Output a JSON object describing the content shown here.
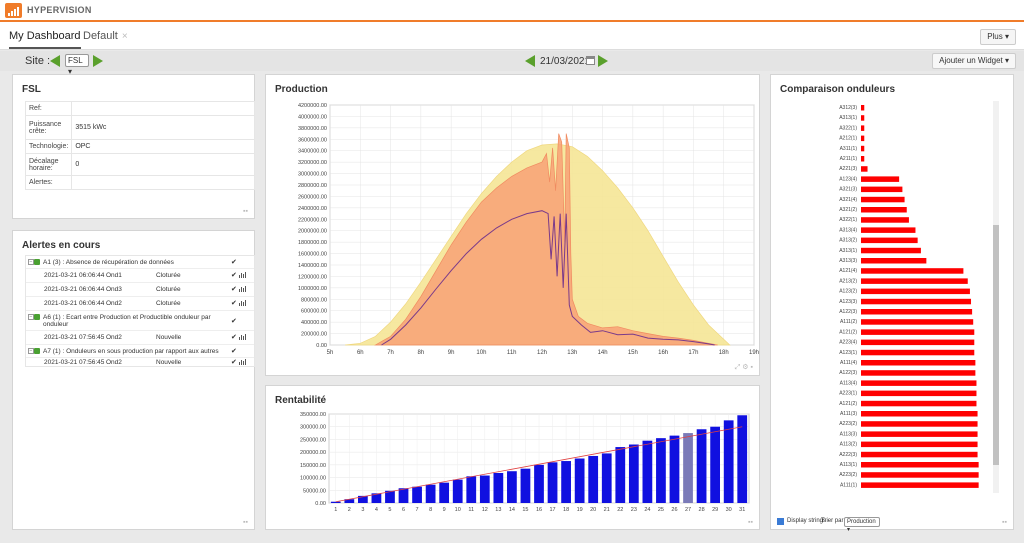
{
  "app": {
    "brand": "HYPERVISION"
  },
  "tabs": [
    {
      "label": "My Dashboard"
    },
    {
      "label": "Default",
      "close": "×"
    }
  ],
  "plus_label": "Plus ▾",
  "toolbar": {
    "site_label": "Site :",
    "site_value": "FSL ▾",
    "date": "21/03/2021",
    "add_widget": "Ajouter un Widget ▾"
  },
  "fsl": {
    "title": "FSL",
    "rows": [
      {
        "key": "Ref:",
        "value": ""
      },
      {
        "key": "Puissance crête:",
        "value": "3515 kWc"
      },
      {
        "key": "Technologie:",
        "value": "OPC"
      },
      {
        "key": "Décalage horaire:",
        "value": "0"
      },
      {
        "key": "Alertes:",
        "value": ""
      }
    ]
  },
  "alerts": {
    "title": "Alertes en cours",
    "groups": [
      {
        "header": "A1 (3) : Absence de récupération de données",
        "rows": [
          {
            "date": "2021-03-21 06:06:44",
            "ond": "Ond1",
            "status": "Cloturée"
          },
          {
            "date": "2021-03-21 06:06:44",
            "ond": "Ond3",
            "status": "Cloturée"
          },
          {
            "date": "2021-03-21 06:06:44",
            "ond": "Ond2",
            "status": "Cloturée"
          }
        ]
      },
      {
        "header": "A6 (1) : Ecart entre Production et Productible onduleur par onduleur",
        "rows": [
          {
            "date": "2021-03-21 07:56:45",
            "ond": "Ond2",
            "status": "Nouvelle"
          }
        ]
      },
      {
        "header": "A7 (1) : Onduleurs en sous production par rapport aux autres",
        "rows": [
          {
            "date": "2021-03-21 07:56:45",
            "ond": "Ond2",
            "status": "Nouvelle"
          }
        ]
      }
    ]
  },
  "production": {
    "title": "Production"
  },
  "rentabilite": {
    "title": "Rentabilité"
  },
  "comparaison": {
    "title": "Comparaison onduleurs",
    "display_strings": "Display strings",
    "trier_par": "Trier par :",
    "trier_value": "Production ▾"
  },
  "colors": {
    "accent": "#f07c2a",
    "green": "#5aa02c",
    "bar_red": "#ff0000",
    "bar_blue": "#1010e0"
  },
  "chart_data": [
    {
      "type": "area",
      "title": "",
      "x": [
        "5h",
        "6h",
        "7h",
        "8h",
        "9h",
        "10h",
        "11h",
        "12h",
        "13h",
        "14h",
        "15h",
        "16h",
        "17h",
        "18h",
        "19h"
      ],
      "ylim": [
        0,
        4200000
      ],
      "yticks": [
        "0.00",
        "200000.00",
        "400000.00",
        "600000.00",
        "800000.00",
        "1000000.00",
        "1200000.00",
        "1400000.00",
        "1600000.00",
        "1800000.00",
        "2000000.00",
        "2200000.00",
        "2400000.00",
        "2600000.00",
        "2800000.00",
        "3000000.00",
        "3200000.00",
        "3400000.00",
        "3600000.00",
        "3800000.00",
        "4000000.00",
        "4200000.00"
      ],
      "series": [
        {
          "kind": "area",
          "color": "#f5e596",
          "points": [
            [
              5.5,
              0
            ],
            [
              6,
              30000
            ],
            [
              6.5,
              150000
            ],
            [
              7,
              400000
            ],
            [
              7.5,
              720000
            ],
            [
              8,
              1100000
            ],
            [
              8.5,
              1500000
            ],
            [
              9,
              1900000
            ],
            [
              9.5,
              2300000
            ],
            [
              10,
              2650000
            ],
            [
              10.5,
              2950000
            ],
            [
              11,
              3200000
            ],
            [
              11.5,
              3400000
            ],
            [
              12,
              3500000
            ],
            [
              12.5,
              3520000
            ],
            [
              13,
              3470000
            ],
            [
              13.5,
              3300000
            ],
            [
              14,
              3050000
            ],
            [
              14.5,
              2750000
            ],
            [
              15,
              2400000
            ],
            [
              15.5,
              2000000
            ],
            [
              16,
              1550000
            ],
            [
              16.5,
              1100000
            ],
            [
              17,
              700000
            ],
            [
              17.5,
              350000
            ],
            [
              18,
              100000
            ],
            [
              18.2,
              0
            ]
          ]
        },
        {
          "kind": "area",
          "color": "#f8a176",
          "points": [
            [
              6.5,
              0
            ],
            [
              7,
              150000
            ],
            [
              7.5,
              450000
            ],
            [
              8,
              850000
            ],
            [
              8.5,
              1300000
            ],
            [
              9,
              1750000
            ],
            [
              9.5,
              2150000
            ],
            [
              10,
              2500000
            ],
            [
              10.5,
              2750000
            ],
            [
              11,
              2950000
            ],
            [
              11.5,
              3100000
            ],
            [
              12,
              3200000
            ],
            [
              12.15,
              3350000
            ],
            [
              12.25,
              2850000
            ],
            [
              12.35,
              3450000
            ],
            [
              12.45,
              2700000
            ],
            [
              12.55,
              3700000
            ],
            [
              12.65,
              3550000
            ],
            [
              12.75,
              1800000
            ],
            [
              12.8,
              3700000
            ],
            [
              12.9,
              3450000
            ],
            [
              12.95,
              1600000
            ],
            [
              13,
              800000
            ],
            [
              13.2,
              500000
            ],
            [
              13.5,
              380000
            ],
            [
              14,
              300000
            ],
            [
              14.5,
              320000
            ],
            [
              15,
              250000
            ],
            [
              15.5,
              200000
            ],
            [
              16,
              150000
            ],
            [
              16.5,
              120000
            ],
            [
              17,
              80000
            ],
            [
              17.5,
              30000
            ],
            [
              17.8,
              0
            ]
          ]
        },
        {
          "kind": "line",
          "color": "#7a3a8a",
          "points": [
            [
              6.7,
              0
            ],
            [
              7,
              100000
            ],
            [
              7.5,
              350000
            ],
            [
              8,
              650000
            ],
            [
              8.5,
              980000
            ],
            [
              9,
              1300000
            ],
            [
              9.5,
              1600000
            ],
            [
              10,
              1850000
            ],
            [
              10.5,
              2050000
            ],
            [
              11,
              2200000
            ],
            [
              11.5,
              2300000
            ],
            [
              12,
              2350000
            ],
            [
              12.2,
              2300000
            ],
            [
              12.3,
              1500000
            ],
            [
              12.4,
              2250000
            ],
            [
              12.5,
              1200000
            ],
            [
              12.6,
              2300000
            ],
            [
              12.7,
              1000000
            ],
            [
              12.8,
              2300000
            ],
            [
              12.9,
              700000
            ],
            [
              13,
              500000
            ],
            [
              13.3,
              350000
            ],
            [
              13.6,
              220000
            ],
            [
              14,
              250000
            ],
            [
              14.5,
              180000
            ],
            [
              15,
              190000
            ],
            [
              15.5,
              120000
            ],
            [
              16,
              100000
            ],
            [
              16.5,
              90000
            ],
            [
              17,
              60000
            ],
            [
              17.5,
              20000
            ],
            [
              17.7,
              0
            ]
          ]
        }
      ]
    },
    {
      "type": "bar",
      "title": "",
      "categories": [
        "1",
        "2",
        "3",
        "4",
        "5",
        "6",
        "7",
        "8",
        "9",
        "10",
        "11",
        "12",
        "13",
        "14",
        "15",
        "16",
        "17",
        "18",
        "19",
        "20",
        "21",
        "22",
        "23",
        "24",
        "25",
        "26",
        "27",
        "28",
        "29",
        "30",
        "31"
      ],
      "values": [
        5000,
        15000,
        28000,
        38000,
        48000,
        58000,
        64000,
        72000,
        80000,
        92000,
        105000,
        108000,
        118000,
        125000,
        135000,
        150000,
        160000,
        165000,
        175000,
        185000,
        195000,
        220000,
        230000,
        245000,
        255000,
        265000,
        275000,
        290000,
        300000,
        325000,
        345000
      ],
      "ylim": [
        0,
        350000
      ],
      "yticks": [
        "0.00",
        "50000.00",
        "100000.00",
        "150000.00",
        "200000.00",
        "250000.00",
        "300000.00",
        "350000.00"
      ],
      "trend": [
        [
          1,
          5000
        ],
        [
          31,
          300000
        ]
      ]
    },
    {
      "type": "bar",
      "orientation": "horizontal",
      "title": "",
      "categories": [
        "A312(3)",
        "A313(1)",
        "A322(1)",
        "A212(1)",
        "A311(1)",
        "A211(1)",
        "A221(3)",
        "A123(4)",
        "A321(3)",
        "A321(4)",
        "A321(2)",
        "A322(1)",
        "A313(4)",
        "A313(2)",
        "A313(1)",
        "A313(3)",
        "A121(4)",
        "A213(2)",
        "A123(2)",
        "A123(3)",
        "A122(3)",
        "A111(2)",
        "A121(2)",
        "A223(4)",
        "A123(1)",
        "A111(4)",
        "A122(3)",
        "A113(4)",
        "A223(1)",
        "A121(2)",
        "A111(3)",
        "A223(2)",
        "A113(3)",
        "A113(2)",
        "A222(3)",
        "A113(1)",
        "A223(2)",
        "A111(1)"
      ],
      "values": [
        3,
        3,
        3,
        3,
        3,
        3,
        6,
        35,
        38,
        40,
        42,
        44,
        50,
        52,
        55,
        60,
        94,
        98,
        100,
        101,
        102,
        103,
        104,
        104,
        104,
        105,
        105,
        106,
        106,
        106,
        107,
        107,
        107,
        107,
        107,
        108,
        108,
        108
      ],
      "xlim": [
        0,
        112
      ]
    }
  ]
}
